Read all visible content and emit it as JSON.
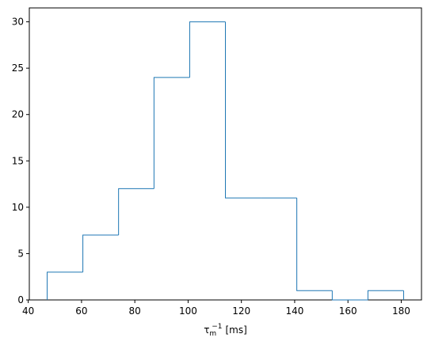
{
  "chart_data": {
    "type": "histogram",
    "bins": [
      47.1,
      60.5,
      73.9,
      87.2,
      100.6,
      114.0,
      127.4,
      140.8,
      154.1,
      167.5,
      180.9
    ],
    "values": [
      3,
      7,
      12,
      24,
      30,
      11,
      11,
      1,
      0,
      1
    ],
    "color": "#1f77b4",
    "xlabel": {
      "symbol": "τ",
      "subscript": "m",
      "superscript": "−1",
      "unit": "[ms]"
    },
    "xlim": [
      40.4,
      187.6
    ],
    "xticks": [
      40,
      60,
      80,
      100,
      120,
      140,
      160,
      180
    ],
    "ylim": [
      0,
      31.5
    ],
    "yticks": [
      0,
      5,
      10,
      15,
      20,
      25,
      30
    ]
  }
}
